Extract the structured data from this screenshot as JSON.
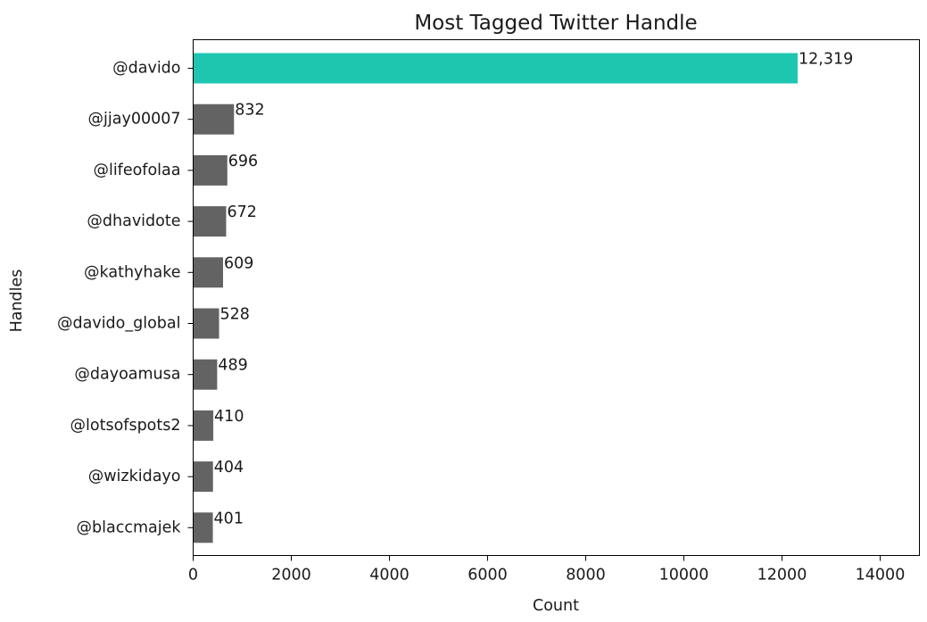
{
  "chart_data": {
    "type": "bar",
    "orientation": "horizontal",
    "title": "Most Tagged Twitter Handle",
    "xlabel": "Count",
    "ylabel": "Handles",
    "categories": [
      "@davido",
      "@jjay00007",
      "@lifeofolaa",
      "@dhavidote",
      "@kathyhake",
      "@davido_global",
      "@dayoamusa",
      "@lotsofspots2",
      "@wizkidayo",
      "@blaccmajek"
    ],
    "values": [
      12319,
      832,
      696,
      672,
      609,
      528,
      489,
      410,
      404,
      401
    ],
    "value_labels": [
      "12,319",
      "832",
      "696",
      "672",
      "609",
      "528",
      "489",
      "410",
      "404",
      "401"
    ],
    "xlim": [
      0,
      14800
    ],
    "xticks": [
      0,
      2000,
      4000,
      6000,
      8000,
      10000,
      12000,
      14000
    ],
    "xtick_labels": [
      "0",
      "2000",
      "4000",
      "6000",
      "8000",
      "10000",
      "12000",
      "14000"
    ],
    "grid": false,
    "colors": {
      "highlight": "#1ec6b0",
      "default": "#636363"
    },
    "highlight_index": 0
  }
}
